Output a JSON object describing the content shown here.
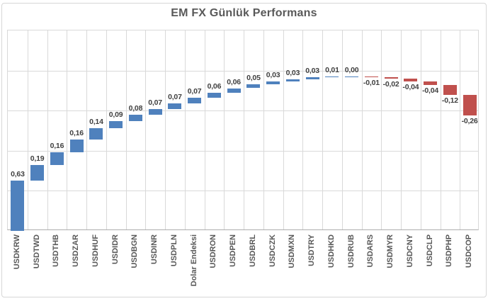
{
  "title": "EM FX Günlük Performans",
  "colors": {
    "positive": "#4F81BD",
    "negative": "#C0504D",
    "gridline": "#D9D9D9",
    "axis_line": "#ADADAD",
    "outer_border": "#D6D6D6",
    "title_text": "#595959",
    "value_label_text": "#404040",
    "category_text": "#595959",
    "background": "#FFFFFF"
  },
  "chart_data": {
    "type": "bar",
    "subtype": "waterfall",
    "title": "EM FX Günlük Performans",
    "categories": [
      "USDKRW",
      "USDTWD",
      "USDTHB",
      "USDZAR",
      "USDHUF",
      "USDIDR",
      "USDBGN",
      "USDINR",
      "USDPLN",
      "Dolar Endeksi",
      "USDRON",
      "USDPEN",
      "USDBRL",
      "USDCZK",
      "USDMXN",
      "USDTRY",
      "USDHKD",
      "USDRUB",
      "USDARS",
      "USDMYR",
      "USDCNY",
      "USDCLP",
      "USDPHP",
      "USDCOP"
    ],
    "values": [
      0.63,
      0.19,
      0.16,
      0.16,
      0.14,
      0.09,
      0.08,
      0.07,
      0.07,
      0.07,
      0.06,
      0.06,
      0.05,
      0.03,
      0.03,
      0.03,
      0.01,
      0.0,
      -0.01,
      -0.02,
      -0.04,
      -0.04,
      -0.12,
      -0.26
    ],
    "value_labels": [
      "0,63",
      "0,19",
      "0,16",
      "0,16",
      "0,14",
      "0,09",
      "0,08",
      "0,07",
      "0,07",
      "0,07",
      "0,06",
      "0,06",
      "0,05",
      "0,03",
      "0,03",
      "0,03",
      "0,01",
      "0,00",
      "-0,01",
      "-0,02",
      "-0,04",
      "-0,04",
      "-0,12",
      "-0,26"
    ],
    "xlabel": "",
    "ylabel": "",
    "ylim": [
      0,
      2.5
    ],
    "gridline_step": 0.5,
    "grid": "on",
    "vertical_gridlines": "on",
    "legend_position": "none",
    "y_tick_labels_visible": false,
    "label_position": "positive above bar, negative below bar"
  }
}
